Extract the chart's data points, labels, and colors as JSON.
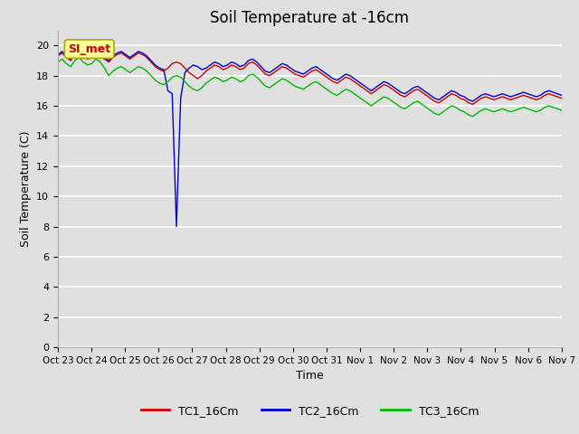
{
  "title": "Soil Temperature at -16cm",
  "xlabel": "Time",
  "ylabel": "Soil Temperature (C)",
  "ylim": [
    0,
    21
  ],
  "yticks": [
    0,
    2,
    4,
    6,
    8,
    10,
    12,
    14,
    16,
    18,
    20
  ],
  "xtick_labels": [
    "Oct 23",
    "Oct 24",
    "Oct 25",
    "Oct 26",
    "Oct 27",
    "Oct 28",
    "Oct 29",
    "Oct 30",
    "Oct 31",
    "Nov 1",
    "Nov 2",
    "Nov 3",
    "Nov 4",
    "Nov 5",
    "Nov 6",
    "Nov 7"
  ],
  "line_colors": [
    "#cc0000",
    "#0000cc",
    "#00bb00"
  ],
  "line_labels": [
    "TC1_16Cm",
    "TC2_16Cm",
    "TC3_16Cm"
  ],
  "annotation_text": "SI_met",
  "annotation_color": "#cc0000",
  "annotation_bg": "#ffff99",
  "background_color": "#e0e0e0",
  "title_fontsize": 12,
  "axis_fontsize": 9,
  "legend_fontsize": 9,
  "figsize": [
    6.4,
    4.8
  ],
  "dpi": 100,
  "TC1_16Cm": [
    19.3,
    19.5,
    19.2,
    19.0,
    19.4,
    19.6,
    19.3,
    19.1,
    19.2,
    19.5,
    19.3,
    19.1,
    18.9,
    19.2,
    19.4,
    19.5,
    19.3,
    19.1,
    19.3,
    19.5,
    19.4,
    19.2,
    18.9,
    18.6,
    18.4,
    18.3,
    18.5,
    18.8,
    18.9,
    18.8,
    18.5,
    18.2,
    18.0,
    17.8,
    18.0,
    18.3,
    18.5,
    18.7,
    18.6,
    18.4,
    18.5,
    18.7,
    18.6,
    18.4,
    18.5,
    18.8,
    18.9,
    18.7,
    18.4,
    18.1,
    18.0,
    18.2,
    18.4,
    18.6,
    18.5,
    18.3,
    18.1,
    18.0,
    17.9,
    18.1,
    18.3,
    18.4,
    18.2,
    18.0,
    17.8,
    17.6,
    17.5,
    17.7,
    17.9,
    17.8,
    17.6,
    17.4,
    17.2,
    17.0,
    16.8,
    17.0,
    17.2,
    17.4,
    17.3,
    17.1,
    16.9,
    16.7,
    16.6,
    16.8,
    17.0,
    17.1,
    16.9,
    16.7,
    16.5,
    16.3,
    16.2,
    16.4,
    16.6,
    16.8,
    16.7,
    16.5,
    16.4,
    16.2,
    16.1,
    16.3,
    16.5,
    16.6,
    16.5,
    16.4,
    16.5,
    16.6,
    16.5,
    16.4,
    16.5,
    16.6,
    16.7,
    16.6,
    16.5,
    16.4,
    16.5,
    16.7,
    16.8,
    16.7,
    16.6,
    16.5
  ],
  "TC2_16Cm": [
    19.4,
    19.6,
    19.3,
    19.1,
    19.5,
    19.7,
    19.4,
    19.2,
    19.3,
    19.6,
    19.4,
    19.2,
    19.0,
    19.3,
    19.5,
    19.6,
    19.4,
    19.2,
    19.4,
    19.6,
    19.5,
    19.3,
    19.0,
    18.7,
    18.5,
    18.4,
    17.0,
    16.8,
    8.0,
    16.5,
    18.2,
    18.5,
    18.7,
    18.6,
    18.4,
    18.5,
    18.7,
    18.9,
    18.8,
    18.6,
    18.7,
    18.9,
    18.8,
    18.6,
    18.7,
    19.0,
    19.1,
    18.9,
    18.6,
    18.3,
    18.2,
    18.4,
    18.6,
    18.8,
    18.7,
    18.5,
    18.3,
    18.2,
    18.1,
    18.3,
    18.5,
    18.6,
    18.4,
    18.2,
    18.0,
    17.8,
    17.7,
    17.9,
    18.1,
    18.0,
    17.8,
    17.6,
    17.4,
    17.2,
    17.0,
    17.2,
    17.4,
    17.6,
    17.5,
    17.3,
    17.1,
    16.9,
    16.8,
    17.0,
    17.2,
    17.3,
    17.1,
    16.9,
    16.7,
    16.5,
    16.4,
    16.6,
    16.8,
    17.0,
    16.9,
    16.7,
    16.6,
    16.4,
    16.3,
    16.5,
    16.7,
    16.8,
    16.7,
    16.6,
    16.7,
    16.8,
    16.7,
    16.6,
    16.7,
    16.8,
    16.9,
    16.8,
    16.7,
    16.6,
    16.7,
    16.9,
    17.0,
    16.9,
    16.8,
    16.7
  ],
  "TC3_16Cm": [
    18.9,
    19.1,
    18.8,
    18.6,
    19.0,
    19.2,
    18.9,
    18.7,
    18.8,
    19.1,
    18.9,
    18.5,
    18.0,
    18.3,
    18.5,
    18.6,
    18.4,
    18.2,
    18.4,
    18.6,
    18.5,
    18.3,
    18.0,
    17.7,
    17.5,
    17.4,
    17.6,
    17.9,
    18.0,
    17.9,
    17.6,
    17.3,
    17.1,
    17.0,
    17.2,
    17.5,
    17.7,
    17.9,
    17.8,
    17.6,
    17.7,
    17.9,
    17.8,
    17.6,
    17.7,
    18.0,
    18.1,
    17.9,
    17.6,
    17.3,
    17.2,
    17.4,
    17.6,
    17.8,
    17.7,
    17.5,
    17.3,
    17.2,
    17.1,
    17.3,
    17.5,
    17.6,
    17.4,
    17.2,
    17.0,
    16.8,
    16.7,
    16.9,
    17.1,
    17.0,
    16.8,
    16.6,
    16.4,
    16.2,
    16.0,
    16.2,
    16.4,
    16.6,
    16.5,
    16.3,
    16.1,
    15.9,
    15.8,
    16.0,
    16.2,
    16.3,
    16.1,
    15.9,
    15.7,
    15.5,
    15.4,
    15.6,
    15.8,
    16.0,
    15.9,
    15.7,
    15.6,
    15.4,
    15.3,
    15.5,
    15.7,
    15.8,
    15.7,
    15.6,
    15.7,
    15.8,
    15.7,
    15.6,
    15.7,
    15.8,
    15.9,
    15.8,
    15.7,
    15.6,
    15.7,
    15.9,
    16.0,
    15.9,
    15.8,
    15.7
  ]
}
